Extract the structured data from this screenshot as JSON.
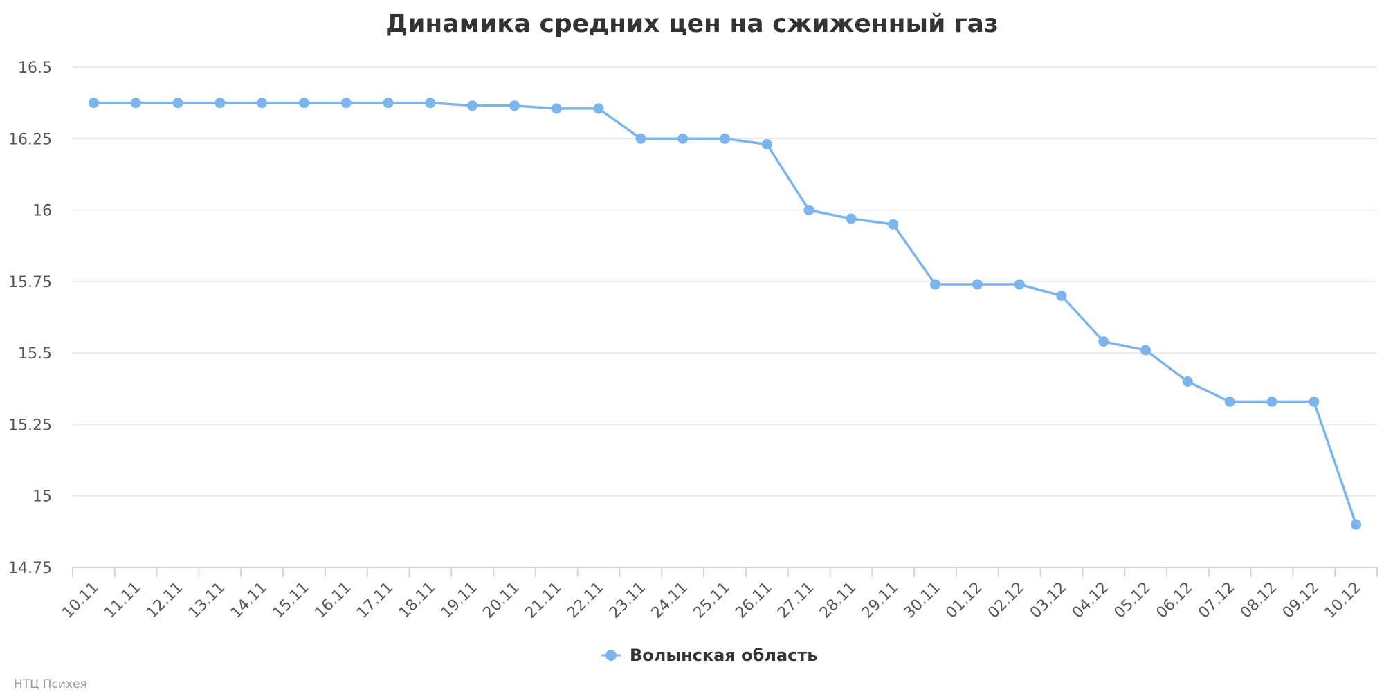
{
  "chart_data": {
    "type": "line",
    "title": "Динамика средних цен на сжиженный газ",
    "xlabel": "",
    "ylabel": "",
    "categories": [
      "10.11",
      "11.11",
      "12.11",
      "13.11",
      "14.11",
      "15.11",
      "16.11",
      "17.11",
      "18.11",
      "19.11",
      "20.11",
      "21.11",
      "22.11",
      "23.11",
      "24.11",
      "25.11",
      "26.11",
      "27.11",
      "28.11",
      "29.11",
      "30.11",
      "01.12",
      "02.12",
      "03.12",
      "04.12",
      "05.12",
      "06.12",
      "07.12",
      "08.12",
      "09.12",
      "10.12"
    ],
    "series": [
      {
        "name": "Волынская область",
        "color": "#7cb5ec",
        "values": [
          16.375,
          16.375,
          16.375,
          16.375,
          16.375,
          16.375,
          16.375,
          16.375,
          16.375,
          16.365,
          16.365,
          16.355,
          16.355,
          16.25,
          16.25,
          16.25,
          16.23,
          16.0,
          15.97,
          15.95,
          15.74,
          15.74,
          15.74,
          15.7,
          15.54,
          15.51,
          15.4,
          15.33,
          15.33,
          15.33,
          14.9
        ]
      }
    ],
    "ylim": [
      14.75,
      16.5
    ],
    "yticks": [
      "14.75",
      "15",
      "15.25",
      "15.5",
      "15.75",
      "16",
      "16.25",
      "16.5"
    ],
    "grid": true,
    "legend_position": "bottom-center"
  },
  "credits": "НТЦ Психея"
}
